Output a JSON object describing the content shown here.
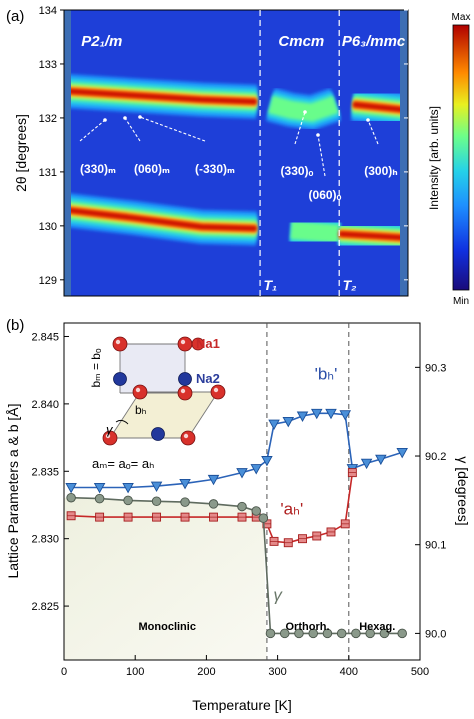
{
  "panel_a_label": "(a)",
  "panel_b_label": "(b)",
  "chart_data": [
    {
      "type": "heatmap",
      "ylabel": "2θ [degrees]",
      "ylim": [
        128.7,
        134
      ],
      "yticks": [
        "129",
        "130",
        "131",
        "132",
        "133",
        "134"
      ],
      "y_tick_values": [
        129,
        130,
        131,
        132,
        133,
        134
      ],
      "xlim": [
        0,
        500
      ],
      "phase_boundaries_K": [
        285,
        400
      ],
      "phases": [
        "P2₁/m",
        "Cmcm",
        "P6₃/mmc"
      ],
      "transition_labels": [
        "T₁",
        "T₂"
      ],
      "peak_annotations": [
        "(330)ₘ",
        "(060)ₘ",
        "(-330)ₘ",
        "(330)ₒ",
        "(060)ₒ",
        "(300)ₕ"
      ],
      "peaks": [
        {
          "name": "upper",
          "path": [
            [
              0,
              132.5
            ],
            [
              100,
              132.42
            ],
            [
              200,
              132.34
            ],
            [
              280,
              132.3
            ],
            [
              300,
              132.25
            ],
            [
              330,
              132.15
            ],
            [
              360,
              132.1
            ],
            [
              395,
              132.25
            ],
            [
              420,
              132.25
            ],
            [
              495,
              132.15
            ]
          ]
        },
        {
          "name": "lower",
          "path": [
            [
              0,
              130.3
            ],
            [
              100,
              130.15
            ],
            [
              200,
              129.98
            ],
            [
              280,
              129.95
            ],
            [
              330,
              129.92
            ],
            [
              400,
              129.85
            ],
            [
              495,
              129.78
            ]
          ]
        }
      ],
      "colorbar": {
        "title": "Intensity [arb. units]",
        "max_label": "Max",
        "min_label": "Min"
      }
    },
    {
      "type": "line",
      "xlabel": "Temperature [K]",
      "ylabel_left": "Lattice Parameters a & b [Å]",
      "ylabel_right": "γ [degrees]",
      "xlim": [
        0,
        500
      ],
      "ylim_left": [
        2.821,
        2.846
      ],
      "ylim_right": [
        89.97,
        90.35
      ],
      "xticks": [
        "0",
        "100",
        "200",
        "300",
        "400",
        "500"
      ],
      "x_tick_values": [
        0,
        100,
        200,
        300,
        400,
        500
      ],
      "yticks_left": [
        "2.825",
        "2.830",
        "2.835",
        "2.840",
        "2.845"
      ],
      "ytick_values_left": [
        2.825,
        2.83,
        2.835,
        2.84,
        2.845
      ],
      "yticks_right": [
        "90.0",
        "90.1",
        "90.2",
        "90.3"
      ],
      "ytick_values_right": [
        90.0,
        90.1,
        90.2,
        90.3
      ],
      "phase_boundaries_K": [
        285,
        400
      ],
      "phase_labels": [
        "Monoclinic",
        "Orthorh.",
        "Hexag."
      ],
      "series": [
        {
          "name": "'bₕ'",
          "axis": "left",
          "color": "#2b63b8",
          "marker": "triangle",
          "x": [
            10,
            50,
            90,
            130,
            170,
            210,
            250,
            270,
            285,
            295,
            315,
            335,
            355,
            375,
            395,
            405,
            425,
            445,
            475
          ],
          "y": [
            2.8338,
            2.8338,
            2.8338,
            2.8339,
            2.8341,
            2.8344,
            2.8349,
            2.8352,
            2.8358,
            2.8385,
            2.8387,
            2.8391,
            2.8393,
            2.8393,
            2.8392,
            2.8352,
            2.8356,
            2.8359,
            2.8364
          ]
        },
        {
          "name": "'aₕ'",
          "axis": "left",
          "color": "#c62828",
          "marker": "square",
          "x": [
            10,
            50,
            90,
            130,
            170,
            210,
            250,
            270,
            285,
            295,
            315,
            335,
            355,
            375,
            395,
            405
          ],
          "y": [
            2.8317,
            2.8316,
            2.8316,
            2.8316,
            2.8316,
            2.8316,
            2.8316,
            2.8316,
            2.8311,
            2.8298,
            2.8297,
            2.83,
            2.8302,
            2.8305,
            2.8311,
            2.8349
          ]
        },
        {
          "name": "γ",
          "axis": "right",
          "color": "#5f6b5f",
          "marker": "circle",
          "x": [
            10,
            50,
            90,
            130,
            170,
            210,
            250,
            270,
            280,
            290,
            310,
            330,
            350,
            370,
            390,
            410,
            430,
            450,
            475
          ],
          "y": [
            90.153,
            90.152,
            90.15,
            90.149,
            90.148,
            90.146,
            90.143,
            90.138,
            90.13,
            90.0,
            90.0,
            90.0,
            90.0,
            90.0,
            90.0,
            90.0,
            90.0,
            90.0,
            90.0
          ]
        }
      ],
      "inset": {
        "legend": [
          "Na1",
          "Na2"
        ],
        "labels": [
          "bₘ = bₒ",
          "bₕ",
          "γ",
          "aₘ= aₒ= aₕ"
        ]
      }
    }
  ]
}
